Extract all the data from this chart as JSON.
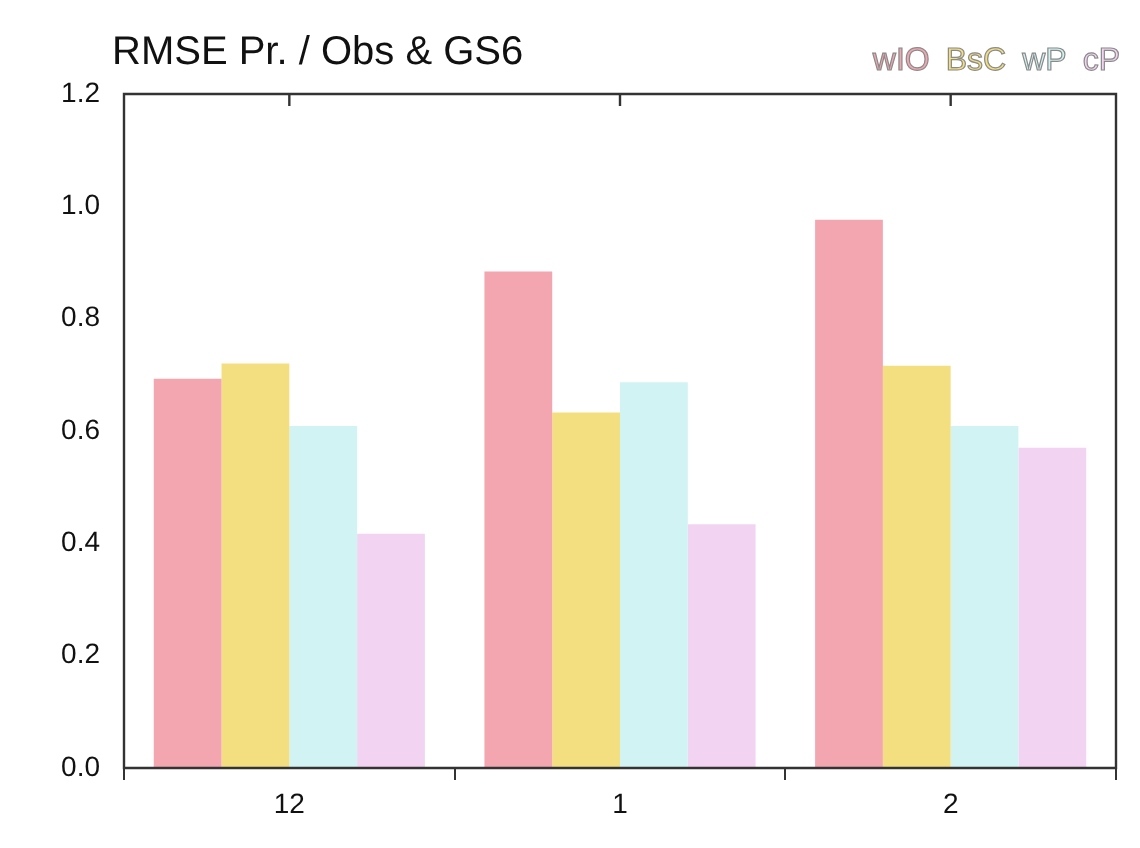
{
  "chart_data": {
    "type": "bar",
    "title": "RMSE Pr. / Obs & GS6",
    "categories": [
      "12",
      "1",
      "2"
    ],
    "series": [
      {
        "name": "wIO",
        "color": "#f4a6b0",
        "values": [
          0.693,
          0.884,
          0.976
        ]
      },
      {
        "name": "BsC",
        "color": "#f4df80",
        "values": [
          0.72,
          0.633,
          0.716
        ]
      },
      {
        "name": "wP",
        "color": "#d2f3f3",
        "values": [
          0.609,
          0.687,
          0.609
        ]
      },
      {
        "name": "cP",
        "color": "#f2d4f2",
        "values": [
          0.417,
          0.434,
          0.57
        ]
      }
    ],
    "ylim": [
      0,
      1.2
    ],
    "yticks": [
      {
        "value": 0,
        "label": "0.0"
      },
      0.2,
      0.4,
      0.6,
      0.8,
      {
        "value": 1,
        "label": "1.0"
      },
      1.2
    ],
    "legend": "top right"
  }
}
